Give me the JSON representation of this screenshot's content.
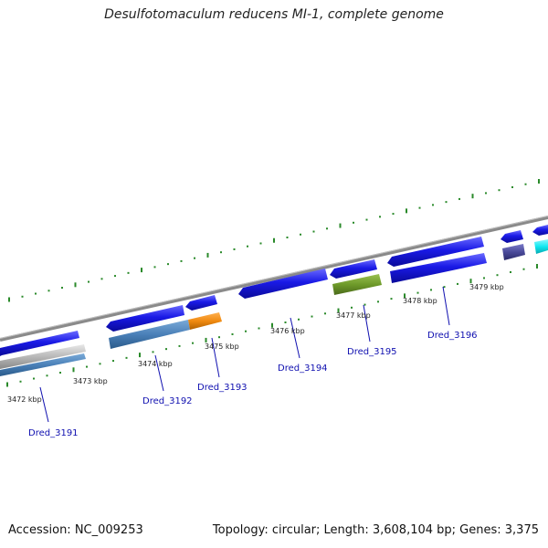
{
  "title": "Desulfotomaculum reducens MI-1, complete genome",
  "footer": {
    "accession": "Accession: NC_009253",
    "stats": "Topology: circular; Length: 3,608,104 bp; Genes: 3,375"
  },
  "scale_labels": [
    "3472 kbp",
    "3473 kbp",
    "3474 kbp",
    "3475 kbp",
    "3476 kbp",
    "3477 kbp",
    "3478 kbp",
    "3479 kbp"
  ],
  "gene_labels": [
    "Dred_3191",
    "Dred_3192",
    "Dred_3193",
    "Dred_3194",
    "Dred_3195",
    "Dred_3196"
  ],
  "colors": {
    "backbone": "#8a8a8a",
    "forward_gene": "#1a1ae6",
    "steelblue_gene": "#4a80b8",
    "orange_gene": "#f08a10",
    "olive_gene": "#6e9a2a",
    "slate_gene": "#4a4a9a",
    "cyan_gene": "#10e8f0",
    "gray_gene": "#b8b8b8",
    "tick": "#2a8a2a",
    "label": "#1010b0"
  }
}
